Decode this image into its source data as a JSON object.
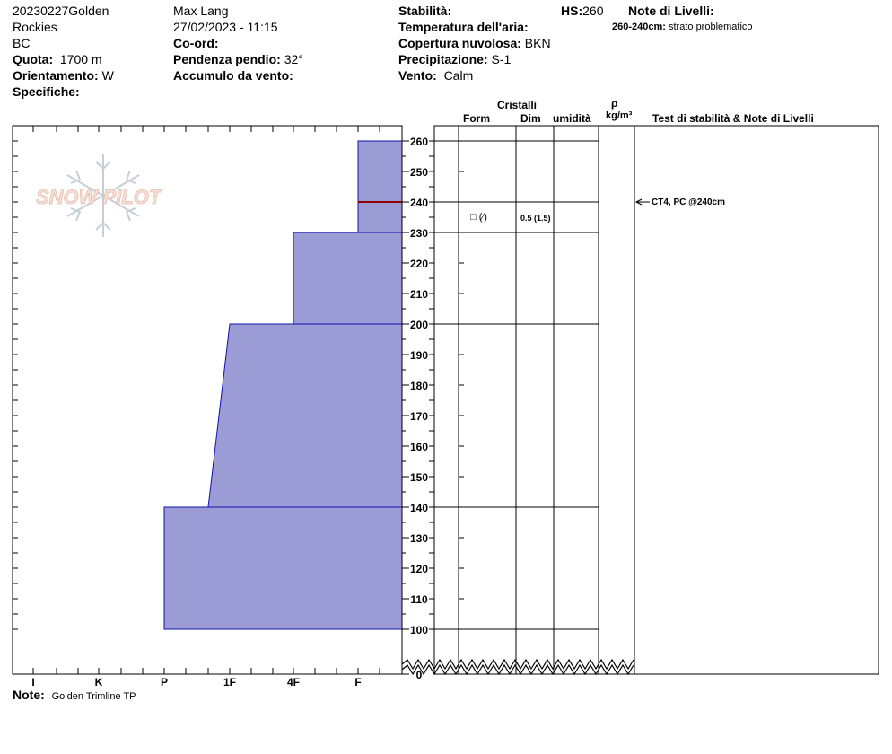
{
  "header": {
    "station_line1": "20230227Golden",
    "station_line2": "Rockies",
    "station_line3": "BC",
    "quota_label": "Quota:",
    "quota_value": "1700 m",
    "orient_label": "Orientamento:",
    "orient_value": "W",
    "specifiche_label": "Specifiche:",
    "observer": "Max Lang",
    "datetime": "27/02/2023 - 11:15",
    "coord_label": "Co-ord:",
    "pendenza_label": "Pendenza pendio:",
    "pendenza_value": "32°",
    "accumulo_label": "Accumulo da vento:",
    "stabilita_label": "Stabilità:",
    "temp_label": "Temperatura dell'aria:",
    "copertura_label": "Copertura nuvolosa:",
    "copertura_value": "BKN",
    "precip_label": "Precipitazione:",
    "precip_value": "S-1",
    "vento_label": "Vento:",
    "vento_value": "Calm",
    "hs_label": "HS:",
    "hs_value": "260",
    "note_livelli_label": "Note di Livelli:",
    "layer_note_range": "260-240cm:",
    "layer_note_text": "strato problematico"
  },
  "columns": {
    "cristalli": "Cristalli",
    "form": "Form",
    "dim": "Dim",
    "umidita": "umidità",
    "rho": "ρ",
    "density_unit": "kg/m³",
    "stability": "Test di stabilità & Note di Livelli"
  },
  "logo_text": "SNOW PILOT",
  "footer": {
    "note_label": "Note:",
    "note_value": "Golden Trimline TP"
  },
  "chart_data": {
    "type": "area",
    "x_hardness_labels": [
      "I",
      "K",
      "P",
      "1F",
      "4F",
      "F"
    ],
    "y_ticks": [
      260,
      250,
      240,
      230,
      220,
      210,
      200,
      190,
      180,
      170,
      160,
      150,
      140,
      130,
      120,
      110,
      100,
      0
    ],
    "y_range_cm": [
      100,
      260
    ],
    "layers": [
      {
        "top": 260,
        "bottom": 230,
        "hardness_top": "F",
        "hardness_bottom": "F"
      },
      {
        "top": 230,
        "bottom": 200,
        "hardness_top": "4F",
        "hardness_bottom": "4F"
      },
      {
        "top": 200,
        "bottom": 140,
        "hardness_top": "1F",
        "hardness_bottom": "1F-"
      },
      {
        "top": 140,
        "bottom": 100,
        "hardness_top": "P",
        "hardness_bottom": "P"
      }
    ],
    "problem_layer_cm": 240,
    "layer_boundaries_cm": [
      260,
      240,
      230,
      200,
      140,
      100
    ],
    "crystal_entry": {
      "form": "□ (⁄)",
      "dim": "0.5 (1.5)",
      "top": 240,
      "bottom": 230
    },
    "stability_test": {
      "label": "CT4, PC @240cm",
      "depth_cm": 240
    },
    "colors": {
      "fill": "#9b9bd6",
      "outline": "#1010b0",
      "problem": "#8b0000"
    }
  }
}
